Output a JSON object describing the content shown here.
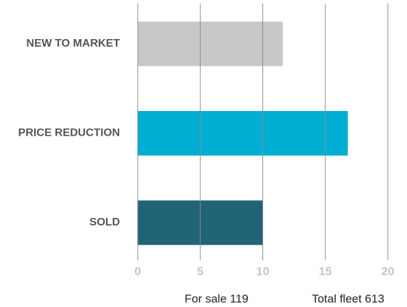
{
  "chart_data": {
    "type": "barh",
    "categories": [
      "NEW TO MARKET",
      "PRICE REDUCTION",
      "SOLD"
    ],
    "values": [
      11.6,
      16.8,
      10
    ],
    "colors": [
      "#c8c8c8",
      "#00aed4",
      "#216477"
    ],
    "xlim": [
      0,
      20
    ],
    "xticks": [
      0,
      5,
      10,
      15,
      20
    ],
    "grid": true,
    "footer": [
      "For sale 119",
      "Total fleet 613"
    ]
  }
}
